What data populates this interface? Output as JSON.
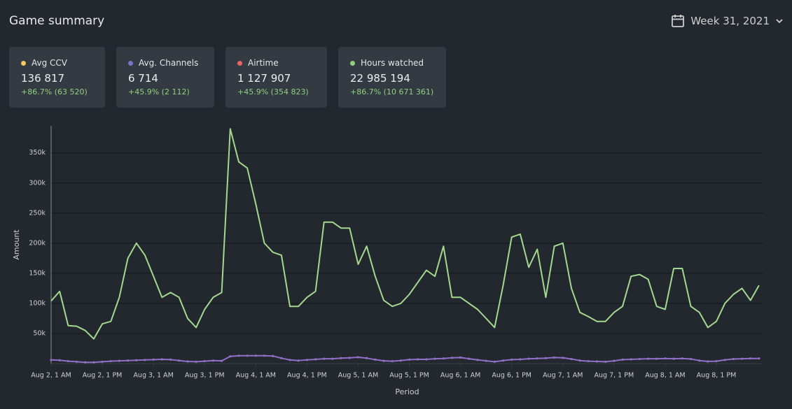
{
  "header": {
    "title": "Game summary",
    "period": "Week 31, 2021"
  },
  "cards": [
    {
      "label": "Avg CCV",
      "value": "136 817",
      "change": "+86.7% (63 520)",
      "color": "#f5c95b"
    },
    {
      "label": "Avg. Channels",
      "value": "6 714",
      "change": "+45.9% (2 112)",
      "color": "#7b74c6"
    },
    {
      "label": "Airtime",
      "value": "1 127 907",
      "change": "+45.9% (354 823)",
      "color": "#e86464"
    },
    {
      "label": "Hours watched",
      "value": "22 985 194",
      "change": "+86.7% (10 671 361)",
      "color": "#8fd17f"
    }
  ],
  "chart_data": {
    "type": "line",
    "x_label": "Period",
    "y_label": "Amount",
    "x": [
      0,
      2,
      4,
      6,
      8,
      10,
      12,
      14,
      16,
      18,
      20,
      22,
      24,
      26,
      28,
      30,
      32,
      34,
      36,
      38,
      40,
      42,
      44,
      46,
      48,
      50,
      52,
      54,
      56,
      58,
      60,
      62,
      64,
      66,
      68,
      70,
      72,
      74,
      76,
      78,
      80,
      82,
      84,
      86,
      88,
      90,
      92,
      94,
      96,
      98,
      100,
      102,
      104,
      106,
      108,
      110,
      112,
      114,
      116,
      118,
      120,
      122,
      124,
      126,
      128,
      130,
      132,
      134,
      136,
      138,
      140,
      142,
      144,
      146,
      148,
      150,
      152,
      154,
      156,
      158,
      160,
      162,
      164,
      166
    ],
    "series": [
      {
        "color": "#a3d98f",
        "markers": false,
        "values": [
          104000,
          120000,
          63000,
          62000,
          55000,
          41000,
          66000,
          70000,
          110000,
          175000,
          200000,
          180000,
          145000,
          110000,
          118000,
          110000,
          75000,
          60000,
          90000,
          110000,
          118000,
          390000,
          335000,
          325000,
          265000,
          200000,
          185000,
          180000,
          95000,
          95000,
          110000,
          120000,
          235000,
          235000,
          225000,
          225000,
          165000,
          195000,
          145000,
          105000,
          95000,
          100000,
          115000,
          135000,
          155000,
          145000,
          195000,
          110000,
          110000,
          100000,
          90000,
          75000,
          60000,
          130000,
          210000,
          215000,
          160000,
          190000,
          110000,
          195000,
          200000,
          125000,
          85000,
          78000,
          70000,
          70000,
          85000,
          95000,
          145000,
          148000,
          140000,
          95000,
          90000,
          158000,
          158000,
          95000,
          85000,
          60000,
          70000,
          100000,
          115000,
          125000,
          105000,
          130000
        ]
      },
      {
        "color": "#9270c8",
        "markers": true,
        "values": [
          6000,
          5500,
          4000,
          3000,
          2000,
          2000,
          3000,
          4000,
          4500,
          5000,
          5500,
          6000,
          6500,
          7000,
          6500,
          5000,
          3500,
          3000,
          4000,
          5000,
          4500,
          12000,
          13000,
          13000,
          13000,
          13000,
          12500,
          9000,
          6000,
          5000,
          6000,
          7000,
          8000,
          8000,
          9000,
          9500,
          10500,
          9000,
          6500,
          4500,
          4000,
          5000,
          6500,
          7000,
          7000,
          8000,
          8500,
          9500,
          10000,
          8000,
          6000,
          4500,
          3000,
          5000,
          6500,
          7000,
          8000,
          8500,
          9000,
          10000,
          9500,
          7500,
          5000,
          4000,
          3500,
          3000,
          4500,
          6500,
          7000,
          7500,
          8000,
          8000,
          8500,
          8000,
          8500,
          7500,
          5000,
          3500,
          4000,
          6000,
          7500,
          8000,
          8500,
          8500
        ]
      }
    ],
    "xlim": [
      0,
      167
    ],
    "xticks": [
      {
        "value": 0,
        "label": "Aug 2, 1 AM"
      },
      {
        "value": 12,
        "label": "Aug 2, 1 PM"
      },
      {
        "value": 24,
        "label": "Aug 3, 1 AM"
      },
      {
        "value": 36,
        "label": "Aug 3, 1 PM"
      },
      {
        "value": 48,
        "label": "Aug 4, 1 AM"
      },
      {
        "value": 60,
        "label": "Aug 4, 1 PM"
      },
      {
        "value": 72,
        "label": "Aug 5, 1 AM"
      },
      {
        "value": 84,
        "label": "Aug 5, 1 PM"
      },
      {
        "value": 96,
        "label": "Aug 6, 1 AM"
      },
      {
        "value": 108,
        "label": "Aug 6, 1 PM"
      },
      {
        "value": 120,
        "label": "Aug 7, 1 AM"
      },
      {
        "value": 132,
        "label": "Aug 7, 1 PM"
      },
      {
        "value": 144,
        "label": "Aug 8, 1 AM"
      },
      {
        "value": 156,
        "label": "Aug 8, 1 PM"
      }
    ],
    "ylim": [
      0,
      395000
    ],
    "yticks": [
      {
        "value": 50000,
        "label": "50k"
      },
      {
        "value": 100000,
        "label": "100k"
      },
      {
        "value": 150000,
        "label": "150k"
      },
      {
        "value": 200000,
        "label": "200k"
      },
      {
        "value": 250000,
        "label": "250k"
      },
      {
        "value": 300000,
        "label": "300k"
      },
      {
        "value": 350000,
        "label": "350k"
      }
    ],
    "grid": true
  }
}
